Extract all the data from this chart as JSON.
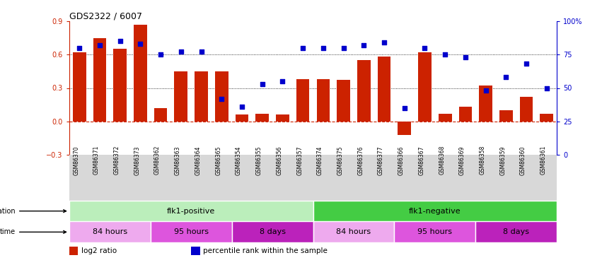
{
  "title": "GDS2322 / 6007",
  "samples": [
    "GSM86370",
    "GSM86371",
    "GSM86372",
    "GSM86373",
    "GSM86362",
    "GSM86363",
    "GSM86364",
    "GSM86365",
    "GSM86354",
    "GSM86355",
    "GSM86356",
    "GSM86357",
    "GSM86374",
    "GSM86375",
    "GSM86376",
    "GSM86377",
    "GSM86366",
    "GSM86367",
    "GSM86368",
    "GSM86369",
    "GSM86358",
    "GSM86359",
    "GSM86360",
    "GSM86361"
  ],
  "log2_ratio": [
    0.62,
    0.75,
    0.65,
    0.87,
    0.12,
    0.45,
    0.45,
    0.45,
    0.06,
    0.07,
    0.06,
    0.38,
    0.38,
    0.37,
    0.55,
    0.58,
    -0.12,
    0.62,
    0.07,
    0.13,
    0.32,
    0.1,
    0.22,
    0.07
  ],
  "percentile": [
    80,
    82,
    85,
    83,
    75,
    77,
    77,
    42,
    36,
    53,
    55,
    80,
    80,
    80,
    82,
    84,
    35,
    80,
    75,
    73,
    48,
    58,
    68,
    50
  ],
  "ylim_left": [
    -0.3,
    0.9
  ],
  "ylim_right": [
    0,
    100
  ],
  "yticks_left": [
    -0.3,
    0.0,
    0.3,
    0.6,
    0.9
  ],
  "yticks_right": [
    0,
    25,
    50,
    75,
    100
  ],
  "bar_color": "#cc2200",
  "dot_color": "#0000cc",
  "hline_color": "#cc2200",
  "dotted_line_values": [
    0.3,
    0.6
  ],
  "genotype_groups": [
    {
      "label": "flk1-positive",
      "start": 0,
      "end": 11,
      "color": "#bbeebb"
    },
    {
      "label": "flk1-negative",
      "start": 12,
      "end": 23,
      "color": "#44cc44"
    }
  ],
  "time_groups": [
    {
      "label": "84 hours",
      "start": 0,
      "end": 3,
      "color": "#eeaaee"
    },
    {
      "label": "95 hours",
      "start": 4,
      "end": 7,
      "color": "#dd55dd"
    },
    {
      "label": "8 days",
      "start": 8,
      "end": 11,
      "color": "#bb22bb"
    },
    {
      "label": "84 hours",
      "start": 12,
      "end": 15,
      "color": "#eeaaee"
    },
    {
      "label": "95 hours",
      "start": 16,
      "end": 19,
      "color": "#dd55dd"
    },
    {
      "label": "8 days",
      "start": 20,
      "end": 23,
      "color": "#bb22bb"
    }
  ]
}
